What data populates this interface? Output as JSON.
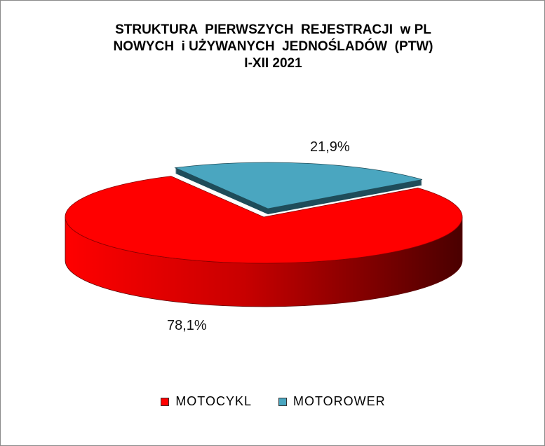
{
  "chart_data": {
    "type": "pie",
    "style": "3d-exploded",
    "title_lines": [
      "STRUKTURA  PIERWSZYCH  REJESTRACJI  w PL",
      "NOWYCH  i UŻYWANYCH  JEDNOŚLADÓW  (PTW)",
      "I-XII 2021"
    ],
    "categories": [
      "MOTOCYKL",
      "MOTOROWER"
    ],
    "values": [
      78.1,
      21.9
    ],
    "data_labels": [
      "78,1%",
      "21,9%"
    ],
    "colors": [
      "#ff0000",
      "#4aa6c0"
    ],
    "legend_position": "bottom"
  }
}
